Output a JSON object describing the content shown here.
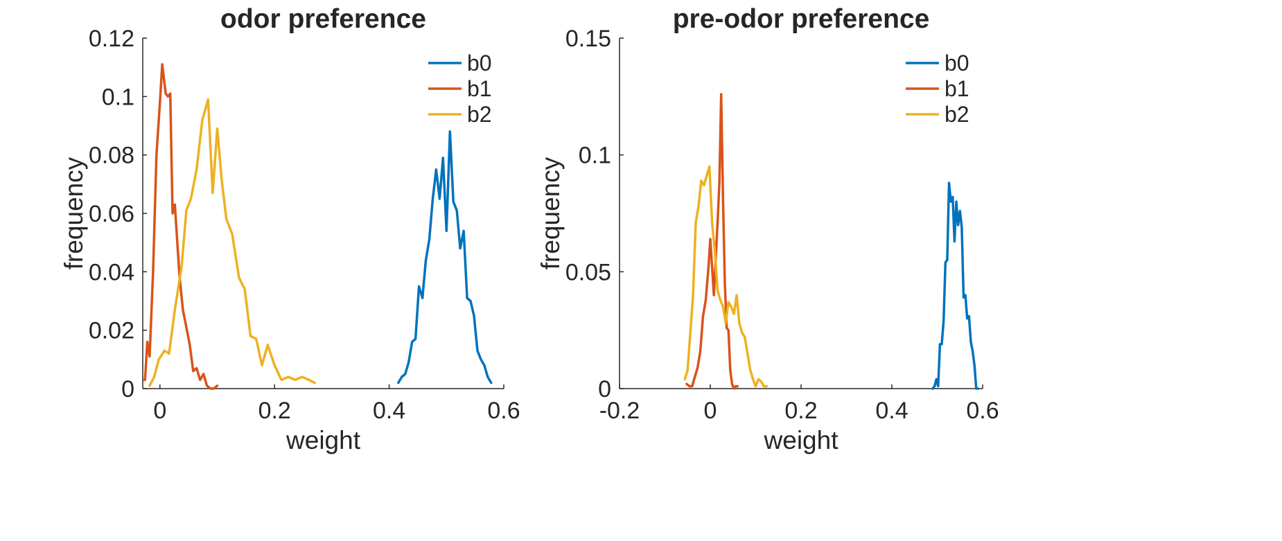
{
  "chart_data": [
    {
      "type": "line",
      "title": "odor preference",
      "xlabel": "weight",
      "ylabel": "frequency",
      "xlim": [
        -0.03,
        0.6
      ],
      "ylim": [
        0,
        0.12
      ],
      "xticks": [
        0,
        0.2,
        0.4,
        0.6
      ],
      "xtick_labels": [
        "0",
        "0.2",
        "0.4",
        "0.6"
      ],
      "yticks": [
        0,
        0.02,
        0.04,
        0.06,
        0.08,
        0.1,
        0.12
      ],
      "ytick_labels": [
        "0",
        "0.02",
        "0.04",
        "0.06",
        "0.08",
        "0.1",
        "0.12"
      ],
      "grid": false,
      "legend_position": "top-right",
      "series": [
        {
          "name": "b0",
          "color": "#0072BD",
          "x": [
            0.416,
            0.422,
            0.428,
            0.434,
            0.44,
            0.446,
            0.452,
            0.458,
            0.464,
            0.47,
            0.476,
            0.482,
            0.488,
            0.494,
            0.5,
            0.506,
            0.512,
            0.518,
            0.524,
            0.53,
            0.536,
            0.542,
            0.548,
            0.554,
            0.56,
            0.566,
            0.572,
            0.578
          ],
          "y": [
            0.002,
            0.004,
            0.005,
            0.009,
            0.016,
            0.017,
            0.035,
            0.031,
            0.044,
            0.051,
            0.065,
            0.075,
            0.065,
            0.079,
            0.054,
            0.088,
            0.064,
            0.061,
            0.048,
            0.054,
            0.031,
            0.03,
            0.025,
            0.013,
            0.01,
            0.008,
            0.004,
            0.002
          ]
        },
        {
          "name": "b1",
          "color": "#D95319",
          "x": [
            -0.03,
            -0.026,
            -0.022,
            -0.018,
            -0.012,
            -0.006,
            0,
            0.004,
            0.01,
            0.014,
            0.018,
            0.022,
            0.026,
            0.034,
            0.04,
            0.046,
            0.052,
            0.058,
            0.064,
            0.07,
            0.076,
            0.082,
            0.088,
            0.094,
            0.1
          ],
          "y": [
            0.003,
            0.003,
            0.016,
            0.011,
            0.04,
            0.08,
            0.098,
            0.111,
            0.101,
            0.1,
            0.101,
            0.06,
            0.063,
            0.039,
            0.027,
            0.021,
            0.015,
            0.006,
            0.007,
            0.003,
            0.005,
            0.001,
            0.0,
            0.0,
            0.001
          ]
        },
        {
          "name": "b2",
          "color": "#EDB120",
          "x": [
            -0.018,
            -0.01,
            -0.002,
            0.008,
            0.016,
            0.026,
            0.038,
            0.046,
            0.054,
            0.064,
            0.074,
            0.084,
            0.092,
            0.1,
            0.108,
            0.116,
            0.126,
            0.138,
            0.148,
            0.158,
            0.168,
            0.178,
            0.188,
            0.2,
            0.212,
            0.224,
            0.236,
            0.248,
            0.26,
            0.27
          ],
          "y": [
            0.001,
            0.004,
            0.01,
            0.013,
            0.012,
            0.027,
            0.042,
            0.061,
            0.065,
            0.075,
            0.092,
            0.099,
            0.067,
            0.089,
            0.071,
            0.058,
            0.053,
            0.038,
            0.034,
            0.018,
            0.017,
            0.008,
            0.015,
            0.008,
            0.003,
            0.004,
            0.003,
            0.004,
            0.003,
            0.002
          ]
        }
      ]
    },
    {
      "type": "line",
      "title": "pre-odor preference",
      "xlabel": "weight",
      "ylabel": "frequency",
      "xlim": [
        -0.2,
        0.6
      ],
      "ylim": [
        0,
        0.15
      ],
      "xticks": [
        -0.2,
        0,
        0.2,
        0.4,
        0.6
      ],
      "xtick_labels": [
        "-0.2",
        "0",
        "0.2",
        "0.4",
        "0.6"
      ],
      "yticks": [
        0,
        0.05,
        0.1,
        0.15
      ],
      "ytick_labels": [
        "0",
        "0.05",
        "0.1",
        "0.15"
      ],
      "grid": false,
      "legend_position": "top-right",
      "series": [
        {
          "name": "b0",
          "color": "#0072BD",
          "x": [
            0.49,
            0.494,
            0.498,
            0.502,
            0.506,
            0.51,
            0.514,
            0.518,
            0.522,
            0.526,
            0.53,
            0.534,
            0.538,
            0.542,
            0.546,
            0.55,
            0.554,
            0.558,
            0.562,
            0.566,
            0.57,
            0.574,
            0.578,
            0.582,
            0.586,
            0.59
          ],
          "y": [
            0.0,
            0.001,
            0.004,
            0.001,
            0.019,
            0.019,
            0.029,
            0.054,
            0.055,
            0.088,
            0.08,
            0.082,
            0.063,
            0.08,
            0.07,
            0.076,
            0.069,
            0.039,
            0.04,
            0.03,
            0.031,
            0.02,
            0.016,
            0.01,
            0.0,
            0.0
          ]
        },
        {
          "name": "b1",
          "color": "#D95319",
          "x": [
            -0.052,
            -0.046,
            -0.04,
            -0.034,
            -0.028,
            -0.022,
            -0.016,
            -0.01,
            -0.004,
            0,
            0.004,
            0.008,
            0.012,
            0.016,
            0.02,
            0.024,
            0.028,
            0.032,
            0.036,
            0.04,
            0.044,
            0.048,
            0.052,
            0.056,
            0.06
          ],
          "y": [
            0.002,
            0.001,
            0.001,
            0.005,
            0.009,
            0.016,
            0.031,
            0.038,
            0.052,
            0.064,
            0.052,
            0.04,
            0.056,
            0.071,
            0.088,
            0.126,
            0.082,
            0.045,
            0.026,
            0.025,
            0.008,
            0.002,
            0.0,
            0.001,
            0.001
          ]
        },
        {
          "name": "b2",
          "color": "#EDB120",
          "x": [
            -0.056,
            -0.05,
            -0.044,
            -0.038,
            -0.032,
            -0.026,
            -0.02,
            -0.014,
            -0.008,
            -0.002,
            0.004,
            0.01,
            0.016,
            0.022,
            0.028,
            0.034,
            0.04,
            0.046,
            0.052,
            0.058,
            0.064,
            0.07,
            0.076,
            0.082,
            0.088,
            0.094,
            0.1,
            0.106,
            0.112,
            0.118,
            0.124
          ],
          "y": [
            0.004,
            0.008,
            0.024,
            0.04,
            0.071,
            0.078,
            0.089,
            0.087,
            0.091,
            0.095,
            0.071,
            0.059,
            0.042,
            0.038,
            0.035,
            0.028,
            0.037,
            0.035,
            0.032,
            0.04,
            0.028,
            0.024,
            0.022,
            0.015,
            0.008,
            0.004,
            0.001,
            0.004,
            0.003,
            0.001,
            0.001
          ]
        }
      ]
    }
  ]
}
